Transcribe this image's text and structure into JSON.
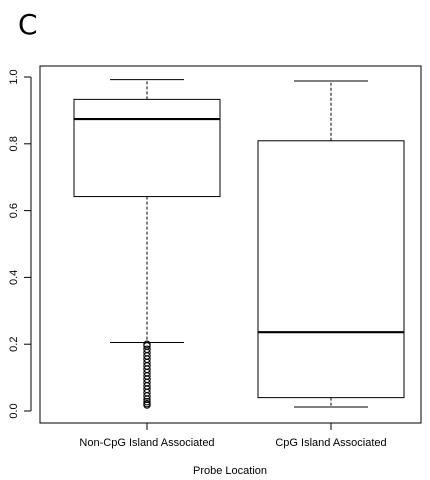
{
  "panel_label": "C",
  "chart_data": {
    "type": "boxplot",
    "title": "",
    "xlabel": "Probe Location",
    "ylabel": "",
    "ylim": [
      0.0,
      1.0
    ],
    "yticks": [
      0.0,
      0.2,
      0.4,
      0.6,
      0.8,
      1.0
    ],
    "ytick_labels": [
      "0.0",
      "0.2",
      "0.4",
      "0.6",
      "0.8",
      "1.0"
    ],
    "grid": false,
    "categories": [
      "Non-CpG Island Associated",
      "CpG Island Associated"
    ],
    "boxes": [
      {
        "category": "Non-CpG Island Associated",
        "whisker_low": 0.205,
        "q1": 0.642,
        "median": 0.874,
        "q3": 0.933,
        "whisker_high": 0.992,
        "outliers": [
          0.2,
          0.195,
          0.185,
          0.175,
          0.165,
          0.155,
          0.145,
          0.135,
          0.125,
          0.115,
          0.105,
          0.095,
          0.085,
          0.075,
          0.065,
          0.055,
          0.045,
          0.035,
          0.028,
          0.022,
          0.018
        ]
      },
      {
        "category": "CpG Island Associated",
        "whisker_low": 0.012,
        "q1": 0.04,
        "median": 0.236,
        "q3": 0.809,
        "whisker_high": 0.988,
        "outliers": []
      }
    ]
  }
}
